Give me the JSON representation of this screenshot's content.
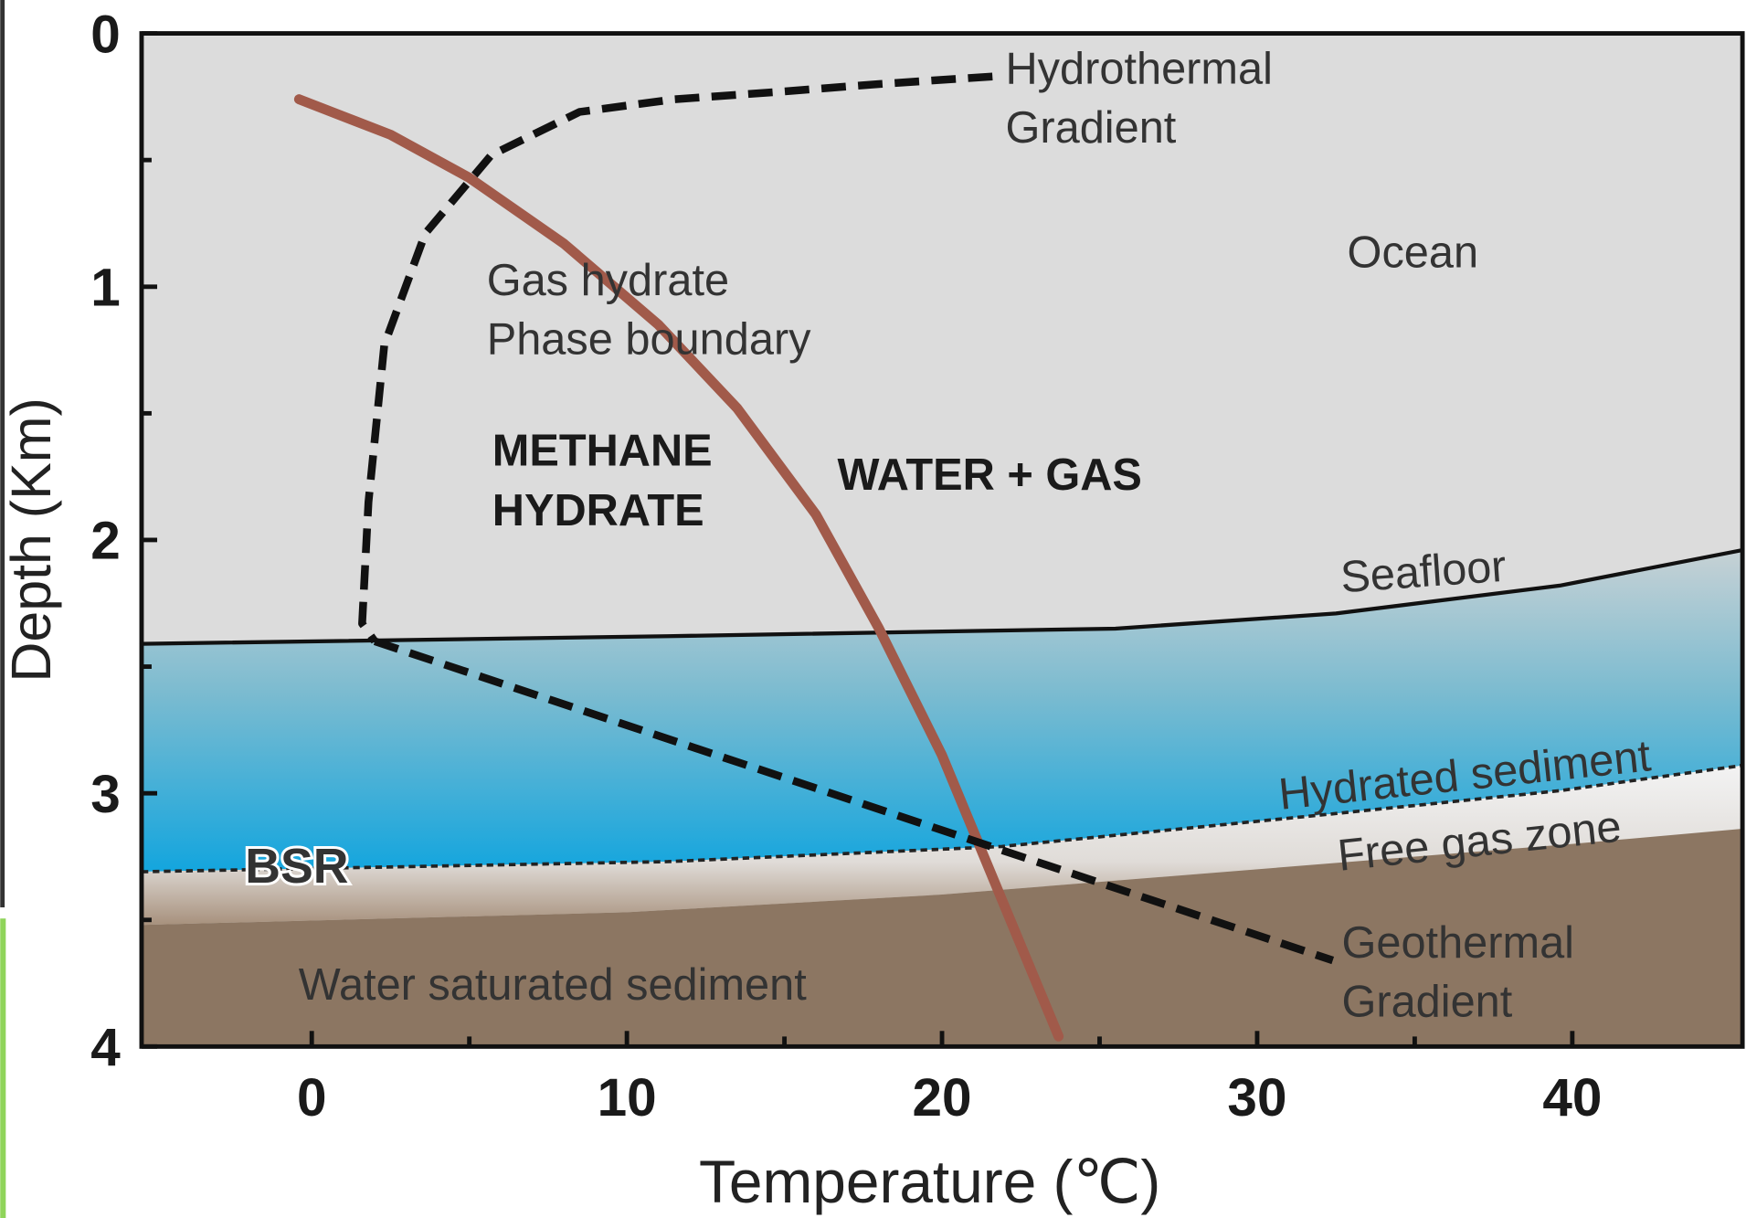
{
  "chart_data": {
    "type": "line",
    "xlabel": "Temperature (℃)",
    "ylabel": "Depth (Km)",
    "xlim": [
      -5.4,
      45.4
    ],
    "ylim": [
      0,
      4
    ],
    "y_inverted": true,
    "xticks": [
      0,
      10,
      20,
      30,
      40
    ],
    "yticks": [
      0,
      1,
      2,
      3,
      4
    ],
    "xminor": [
      5,
      15,
      25,
      35
    ],
    "yminor": [
      0.5,
      1.5,
      2.5,
      3.5
    ],
    "series": [
      {
        "name": "Gas hydrate Phase boundary",
        "color": "#a15a4a",
        "style": "solid",
        "x": [
          -0.4,
          2.5,
          5,
          8,
          11,
          13.5,
          16,
          18,
          20,
          22,
          23.7
        ],
        "values": [
          0.26,
          0.4,
          0.57,
          0.83,
          1.15,
          1.48,
          1.9,
          2.35,
          2.85,
          3.45,
          3.96
        ]
      },
      {
        "name": "Hydrothermal Gradient",
        "color": "#111111",
        "style": "dashed",
        "x": [
          21.6,
          18,
          14.9,
          11.5,
          8.5,
          5.7,
          3.6,
          2.3,
          1.8,
          1.6,
          2.0
        ],
        "values": [
          0.17,
          0.2,
          0.23,
          0.26,
          0.31,
          0.48,
          0.79,
          1.23,
          1.85,
          2.33,
          2.4
        ]
      },
      {
        "name": "Geothermal Gradient",
        "color": "#111111",
        "style": "dashed",
        "x": [
          2.0,
          32.4
        ],
        "values": [
          2.4,
          3.66
        ]
      },
      {
        "name": "Seafloor",
        "color": "#111111",
        "style": "solid",
        "x": [
          -5.4,
          11.3,
          25.5,
          32.5,
          39.6,
          45.4
        ],
        "values": [
          2.41,
          2.38,
          2.35,
          2.29,
          2.18,
          2.04
        ]
      },
      {
        "name": "BSR",
        "color": "#222222",
        "style": "dotted",
        "x": [
          -5.4,
          11.3,
          21.9,
          32.5,
          39.6,
          45.4
        ],
        "values": [
          3.31,
          3.27,
          3.21,
          3.08,
          2.99,
          2.89
        ]
      },
      {
        "name": "Water saturated sediment",
        "color": "#8c7662",
        "style": "area",
        "x": [
          -5.4,
          10,
          20,
          30,
          40,
          45.4
        ],
        "values": [
          3.52,
          3.47,
          3.4,
          3.3,
          3.2,
          3.14
        ]
      }
    ],
    "annotations": [
      "Ocean",
      "Hydrated sediment",
      "Free gas zone",
      "METHANE HYDRATE",
      "WATER + GAS"
    ]
  }
}
